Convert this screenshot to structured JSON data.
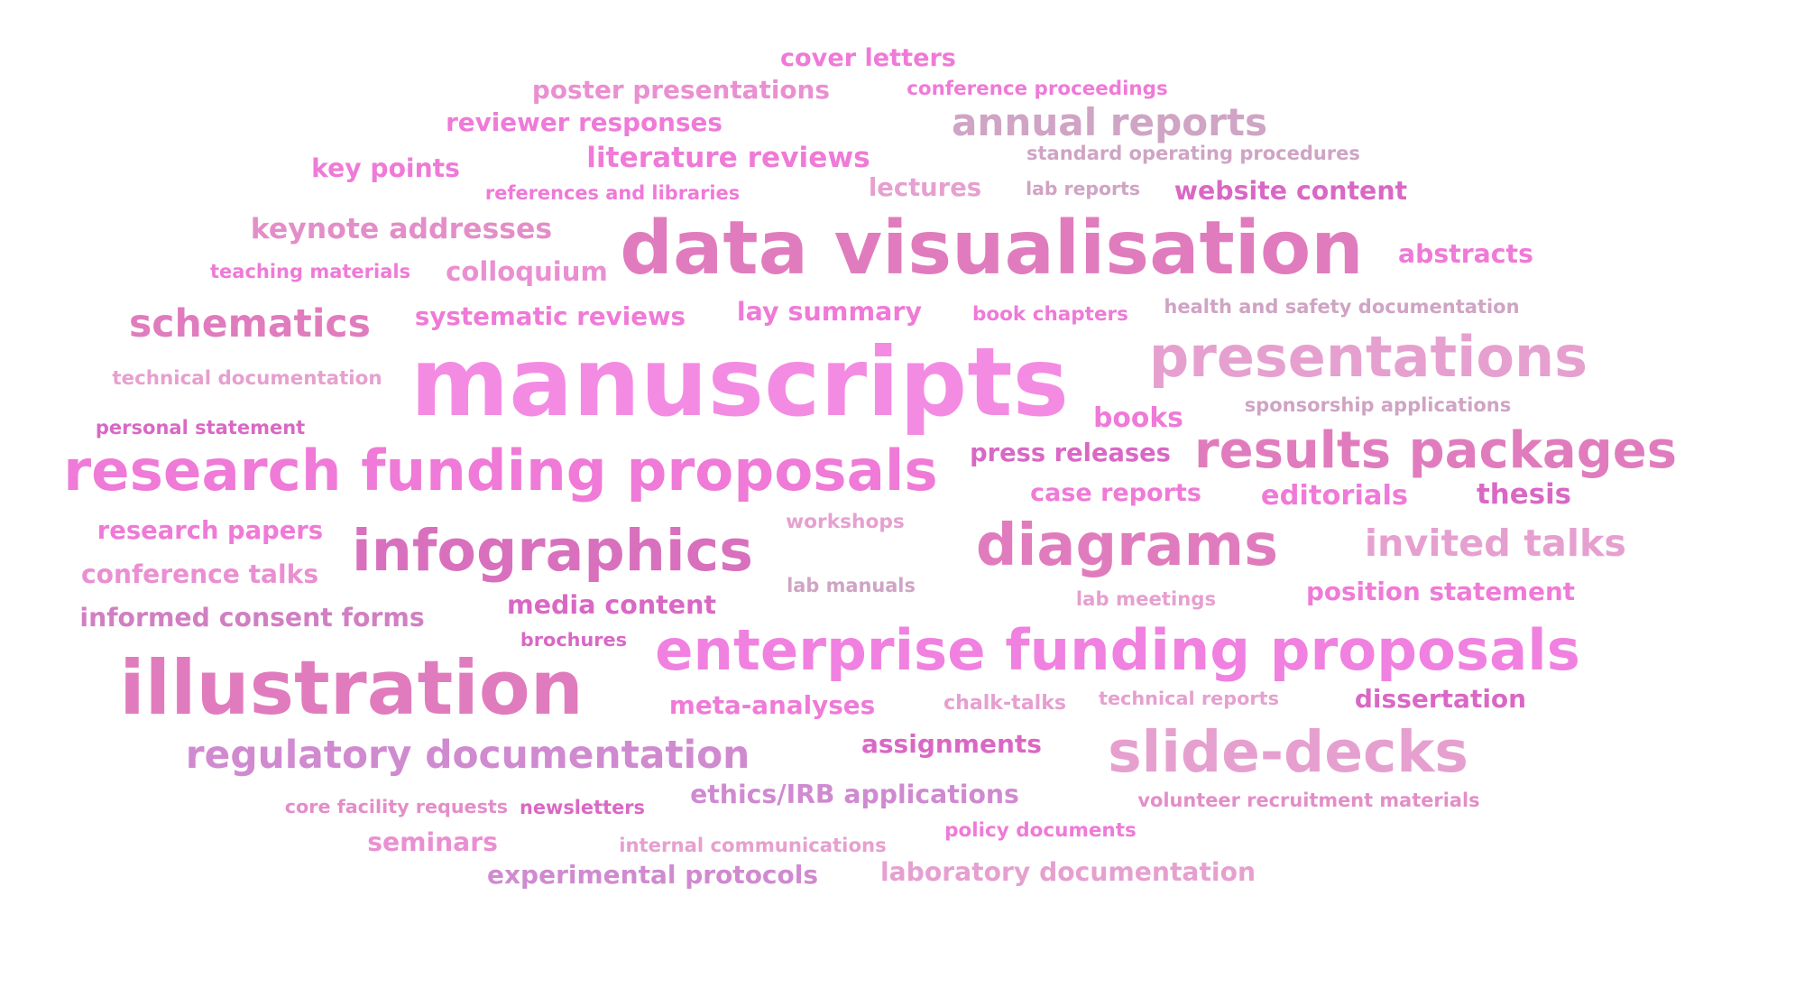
{
  "words": [
    {
      "text": "cover letters",
      "color": "#ef7ad7"
    },
    {
      "text": "poster presentations",
      "color": "#ea8fd1"
    },
    {
      "text": "conference proceedings",
      "color": "#ef7ad7"
    },
    {
      "text": "reviewer responses",
      "color": "#ef7ad7"
    },
    {
      "text": "annual reports",
      "color": "#cfa4c4"
    },
    {
      "text": "literature reviews",
      "color": "#ef7ad7"
    },
    {
      "text": "standard operating procedures",
      "color": "#cfa4c4"
    },
    {
      "text": "key points",
      "color": "#ef7ad7"
    },
    {
      "text": "references and libraries",
      "color": "#ef7ad7"
    },
    {
      "text": "lectures",
      "color": "#e6a0cf"
    },
    {
      "text": "lab reports",
      "color": "#cfa4c4"
    },
    {
      "text": "website content",
      "color": "#d968c5"
    },
    {
      "text": "keynote addresses",
      "color": "#e38ec8"
    },
    {
      "text": "data visualisation",
      "color": "#e07cbd"
    },
    {
      "text": "abstracts",
      "color": "#ef7ad7"
    },
    {
      "text": "teaching materials",
      "color": "#ef7ad7"
    },
    {
      "text": "colloquium",
      "color": "#ea8fd1"
    },
    {
      "text": "schematics",
      "color": "#e07cbd"
    },
    {
      "text": "systematic reviews",
      "color": "#ef7ad7"
    },
    {
      "text": "lay summary",
      "color": "#ef7ad7"
    },
    {
      "text": "book chapters",
      "color": "#ef7ad7"
    },
    {
      "text": "health and safety documentation",
      "color": "#cfa4c4"
    },
    {
      "text": "technical documentation",
      "color": "#e6a0cf"
    },
    {
      "text": "manuscripts",
      "color": "#f48be3"
    },
    {
      "text": "presentations",
      "color": "#e6a0cf"
    },
    {
      "text": "books",
      "color": "#ef7ad7"
    },
    {
      "text": "sponsorship applications",
      "color": "#cfa4c4"
    },
    {
      "text": "personal statement",
      "color": "#d968c5"
    },
    {
      "text": "research funding proposals",
      "color": "#ef7ad7"
    },
    {
      "text": "press releases",
      "color": "#d968c5"
    },
    {
      "text": "results packages",
      "color": "#e07cbd"
    },
    {
      "text": "case reports",
      "color": "#ef7ad7"
    },
    {
      "text": "editorials",
      "color": "#ef7ad7"
    },
    {
      "text": "thesis",
      "color": "#d968c5"
    },
    {
      "text": "workshops",
      "color": "#e6a0cf"
    },
    {
      "text": "research papers",
      "color": "#ef7ad7"
    },
    {
      "text": "infographics",
      "color": "#d870bd"
    },
    {
      "text": "diagrams",
      "color": "#e07cbd"
    },
    {
      "text": "invited talks",
      "color": "#e6a0cf"
    },
    {
      "text": "conference talks",
      "color": "#ea8fd1"
    },
    {
      "text": "lab manuals",
      "color": "#cfa4c4"
    },
    {
      "text": "media content",
      "color": "#d968c5"
    },
    {
      "text": "lab meetings",
      "color": "#e6a0cf"
    },
    {
      "text": "position statement",
      "color": "#ef7ad7"
    },
    {
      "text": "informed consent forms",
      "color": "#d17fc2"
    },
    {
      "text": "brochures",
      "color": "#d968c5"
    },
    {
      "text": "enterprise funding proposals",
      "color": "#f081e0"
    },
    {
      "text": "illustration",
      "color": "#e07cbd"
    },
    {
      "text": "meta-analyses",
      "color": "#ef7ad7"
    },
    {
      "text": "chalk-talks",
      "color": "#e6a0cf"
    },
    {
      "text": "technical reports",
      "color": "#e6a0cf"
    },
    {
      "text": "dissertation",
      "color": "#d968c5"
    },
    {
      "text": "assignments",
      "color": "#d968c5"
    },
    {
      "text": "regulatory documentation",
      "color": "#d08ad0"
    },
    {
      "text": "slide-decks",
      "color": "#e6a0cf"
    },
    {
      "text": "core facility requests",
      "color": "#e38ec8"
    },
    {
      "text": "newsletters",
      "color": "#d968c5"
    },
    {
      "text": "ethics/IRB applications",
      "color": "#d08ad0"
    },
    {
      "text": "volunteer recruitment materials",
      "color": "#e38ec8"
    },
    {
      "text": "seminars",
      "color": "#ea8fd1"
    },
    {
      "text": "internal communications",
      "color": "#e6a0cf"
    },
    {
      "text": "policy documents",
      "color": "#ef7ad7"
    },
    {
      "text": "experimental protocols",
      "color": "#d08ad0"
    },
    {
      "text": "laboratory documentation",
      "color": "#e6a0cf"
    }
  ]
}
